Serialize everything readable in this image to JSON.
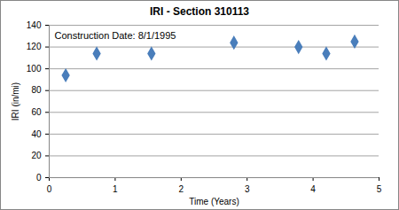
{
  "chart_data": {
    "type": "scatter",
    "title": "IRI - Section 310113",
    "x_label": "Time (Years)",
    "y_label": "IRI (in/mi)",
    "annotation": "Construction Date: 8/1/1995",
    "x": [
      0.25,
      0.72,
      1.55,
      2.8,
      3.78,
      4.2,
      4.63
    ],
    "values": [
      94,
      114,
      114,
      124,
      120,
      114,
      125
    ],
    "color": "#4a7ebb",
    "marker": "diamond",
    "xlim": [
      0,
      5
    ],
    "xticks": [
      0,
      1,
      2,
      3,
      4,
      5
    ],
    "ylim": [
      0,
      140
    ],
    "yticks": [
      0,
      20,
      40,
      60,
      80,
      100,
      120,
      140
    ],
    "grid": true
  }
}
